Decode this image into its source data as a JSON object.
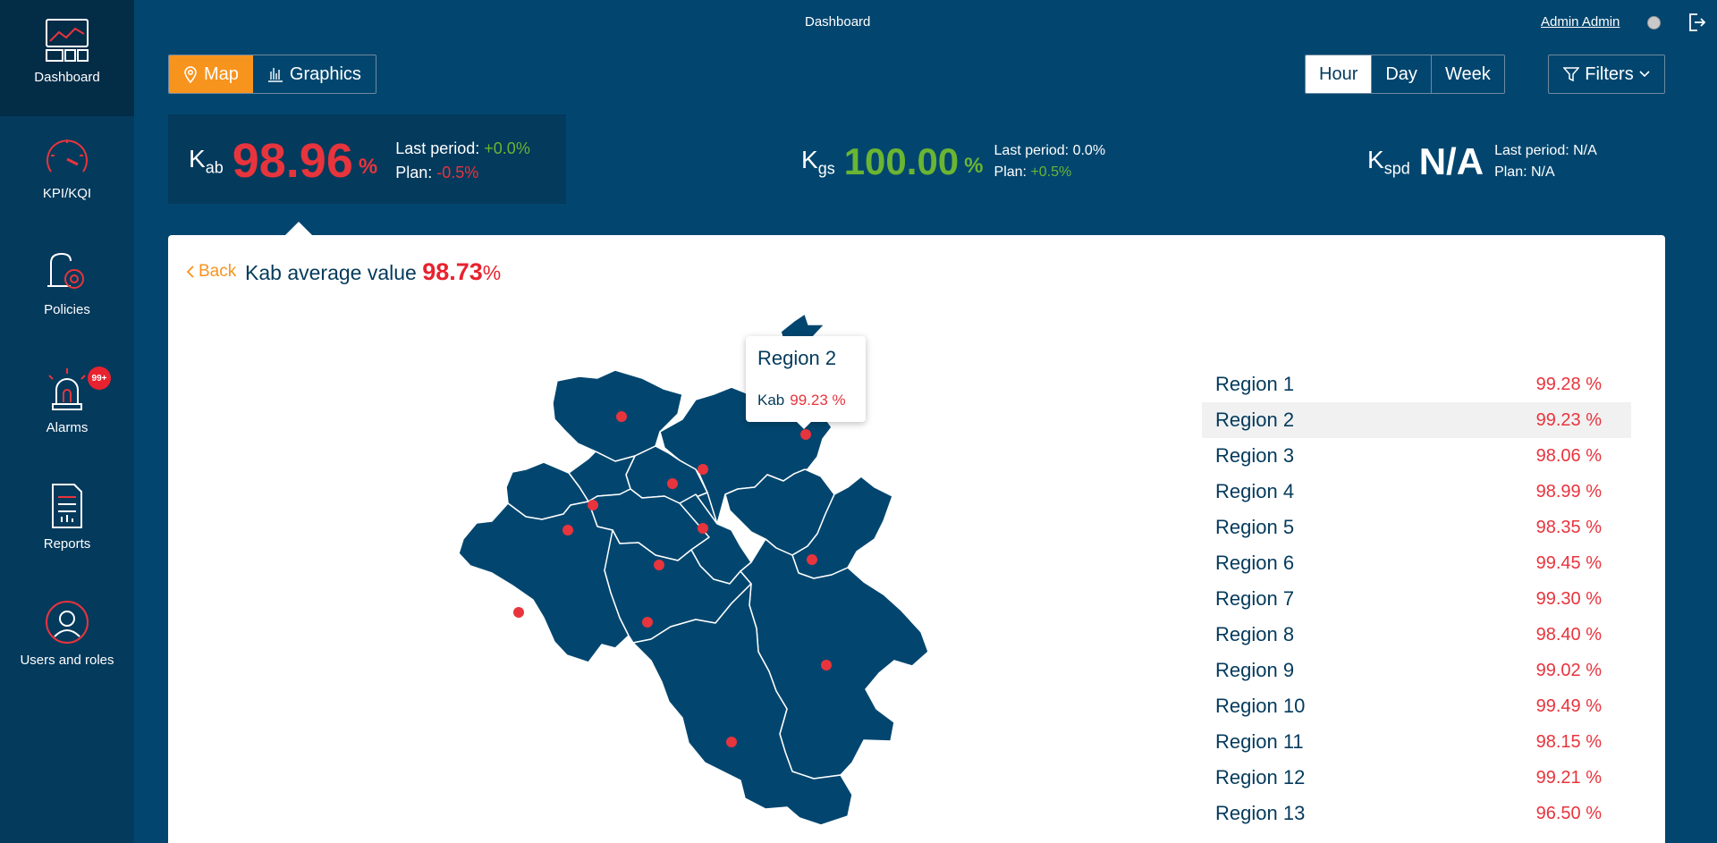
{
  "sidebar": {
    "items": [
      {
        "label": "Dashboard",
        "icon": "dashboard-icon"
      },
      {
        "label": "KPI/KQI",
        "icon": "gauge-icon"
      },
      {
        "label": "Policies",
        "icon": "policy-gear-icon"
      },
      {
        "label": "Alarms",
        "icon": "alarm-siren-icon"
      },
      {
        "label": "Reports",
        "icon": "report-document-icon"
      },
      {
        "label": "Users and roles",
        "icon": "user-avatar-icon"
      }
    ],
    "alarms_badge": "99+"
  },
  "header": {
    "title": "Dashboard",
    "user": "Admin Admin"
  },
  "view_toggle": {
    "map_label": "Map",
    "graphics_label": "Graphics"
  },
  "period_toggle": [
    "Hour",
    "Day",
    "Week"
  ],
  "filters_label": "Filters",
  "kpis": [
    {
      "symbol": "K",
      "sub": "ab",
      "value": "98.96",
      "unit": "%",
      "last_period_label": "Last period:",
      "last_period": "+0.0%",
      "plan_label": "Plan:",
      "plan": "-0.5%"
    },
    {
      "symbol": "K",
      "sub": "gs",
      "value": "100.00",
      "unit": "%",
      "last_period_label": "Last period:",
      "last_period": "0.0%",
      "plan_label": "Plan:",
      "plan": "+0.5%"
    },
    {
      "symbol": "K",
      "sub": "spd",
      "value": "N/A",
      "unit": "",
      "last_period_label": "Last period:",
      "last_period": "N/A",
      "plan_label": "Plan:",
      "plan": "N/A"
    }
  ],
  "panel": {
    "back_label": "Back",
    "title_symbol": "Kab",
    "title_text": "average value",
    "title_value": "98.73",
    "title_unit": "%"
  },
  "tooltip": {
    "region": "Region 2",
    "kpi_label": "Kab",
    "kpi_value": "99.23 %"
  },
  "regions": [
    {
      "name": "Region 1",
      "value": "99.28 %"
    },
    {
      "name": "Region 2",
      "value": "99.23 %"
    },
    {
      "name": "Region 3",
      "value": "98.06 %"
    },
    {
      "name": "Region 4",
      "value": "98.99 %"
    },
    {
      "name": "Region 5",
      "value": "98.35 %"
    },
    {
      "name": "Region 6",
      "value": "99.45 %"
    },
    {
      "name": "Region 7",
      "value": "99.30 %"
    },
    {
      "name": "Region 8",
      "value": "98.40 %"
    },
    {
      "name": "Region 9",
      "value": "99.02 %"
    },
    {
      "name": "Region 10",
      "value": "99.49 %"
    },
    {
      "name": "Region 11",
      "value": "98.15 %"
    },
    {
      "name": "Region 12",
      "value": "99.21 %"
    },
    {
      "name": "Region 13",
      "value": "96.50 %"
    }
  ],
  "colors": {
    "background": "#02466f",
    "sidebar": "#043a5c",
    "accent_orange": "#f7941d",
    "kpi_red": "#e8343d",
    "kpi_green": "#6ab532",
    "map_fill": "#02466f",
    "map_marker": "#e8343d"
  }
}
